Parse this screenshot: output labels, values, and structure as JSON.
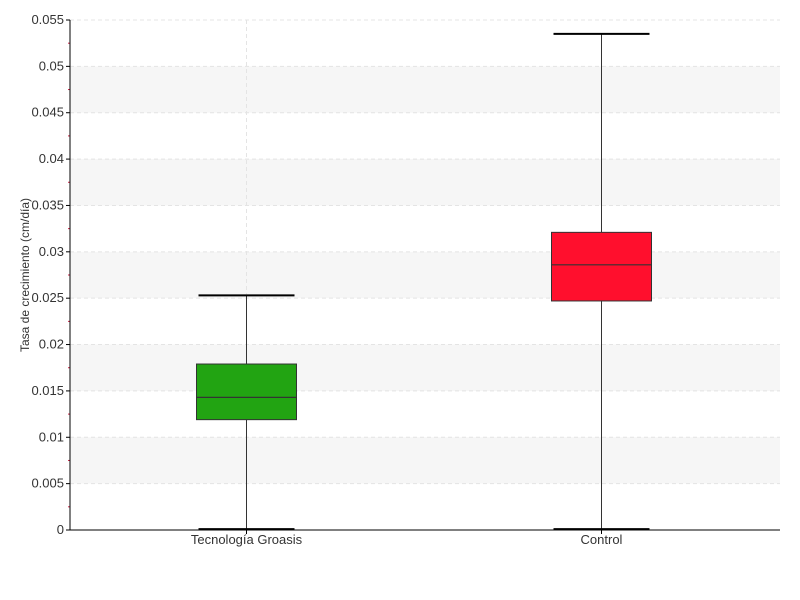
{
  "chart_data": {
    "type": "boxplot",
    "title": "",
    "xlabel": "",
    "ylabel": "Tasa de crecimiento (cm/día)",
    "ylim": [
      0,
      0.055
    ],
    "yticks": [
      "0",
      "0.005",
      "0.01",
      "0.015",
      "0.02",
      "0.025",
      "0.03",
      "0.035",
      "0.04",
      "0.045",
      "0.05",
      "0.055"
    ],
    "grid": true,
    "categories": [
      "Tecnología Groasis",
      "Control"
    ],
    "boxes": [
      {
        "category": "Tecnología Groasis",
        "min": 0.0001,
        "q1": 0.0119,
        "median": 0.0143,
        "q3": 0.0179,
        "max": 0.0253,
        "color": "#22a412"
      },
      {
        "category": "Control",
        "min": 0.0001,
        "q1": 0.0247,
        "median": 0.0286,
        "q3": 0.0321,
        "max": 0.0535,
        "color": "#ff0f2d"
      }
    ]
  }
}
